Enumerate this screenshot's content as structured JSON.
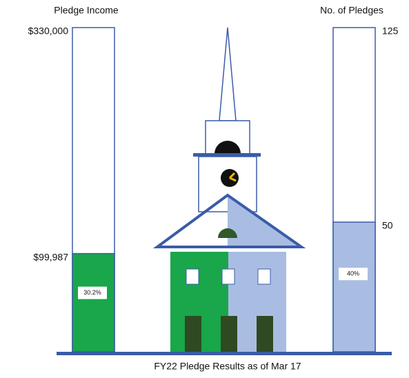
{
  "chart_data": [
    {
      "type": "bar",
      "title": "Pledge Income",
      "values": [
        99987
      ],
      "value_labels": [
        "$99,987"
      ],
      "color": "#1aa64b",
      "ylim": [
        0,
        330000
      ],
      "yticks": [
        {
          "value": 330000,
          "label": "$330,000"
        }
      ],
      "annotation": "30.2%",
      "side": "left"
    },
    {
      "type": "bar",
      "title": "No. of Pledges",
      "values": [
        50
      ],
      "color": "#a9bde3",
      "ylim": [
        0,
        125
      ],
      "yticks": [
        125
      ],
      "annotation": "40%",
      "side": "right"
    }
  ],
  "caption": "FY22 Pledge Results as of Mar 17"
}
